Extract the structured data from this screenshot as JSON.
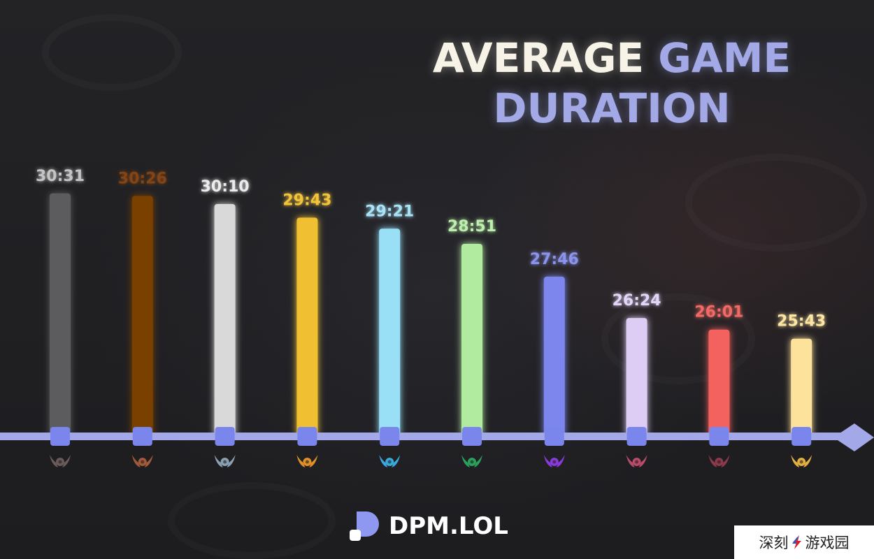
{
  "title": {
    "word1": "AVERAGE",
    "word2": "GAME",
    "line2": "DURATION"
  },
  "chart_data": {
    "type": "bar",
    "categories": [
      "Iron",
      "Bronze",
      "Silver",
      "Gold",
      "Platinum",
      "Emerald",
      "Diamond",
      "Master",
      "Grandmaster",
      "Challenger"
    ],
    "labels": [
      "30:31",
      "30:26",
      "30:10",
      "29:43",
      "29:21",
      "28:51",
      "27:46",
      "26:24",
      "26:01",
      "25:43"
    ],
    "values_seconds": [
      1831,
      1826,
      1810,
      1783,
      1761,
      1731,
      1666,
      1584,
      1561,
      1543
    ],
    "bar_colors": [
      "#5c5c5e",
      "#7a3f06",
      "#d9d9d9",
      "#f0c033",
      "#99e0f7",
      "#b1eba0",
      "#7b86ec",
      "#ddcdf4",
      "#f4625f",
      "#fde29c"
    ],
    "label_colors": [
      "#c4c4c4",
      "#844512",
      "#ececec",
      "#f2c43a",
      "#a9e3f7",
      "#bcefab",
      "#8b94ec",
      "#e3d5f7",
      "#f26a66",
      "#fde6a3"
    ],
    "icon_colors": [
      "#6b5a5a",
      "#a05a3a",
      "#8aa0b0",
      "#e0902a",
      "#3aa8d8",
      "#2aa05a",
      "#8a3ad8",
      "#b84a6a",
      "#8a3a4a",
      "#e0b040"
    ],
    "ylim": [
      1350,
      1900
    ]
  },
  "brand": {
    "name": "DPM.LOL"
  },
  "watermark": {
    "text_left": "深刻",
    "text_right": "游戏园"
  }
}
